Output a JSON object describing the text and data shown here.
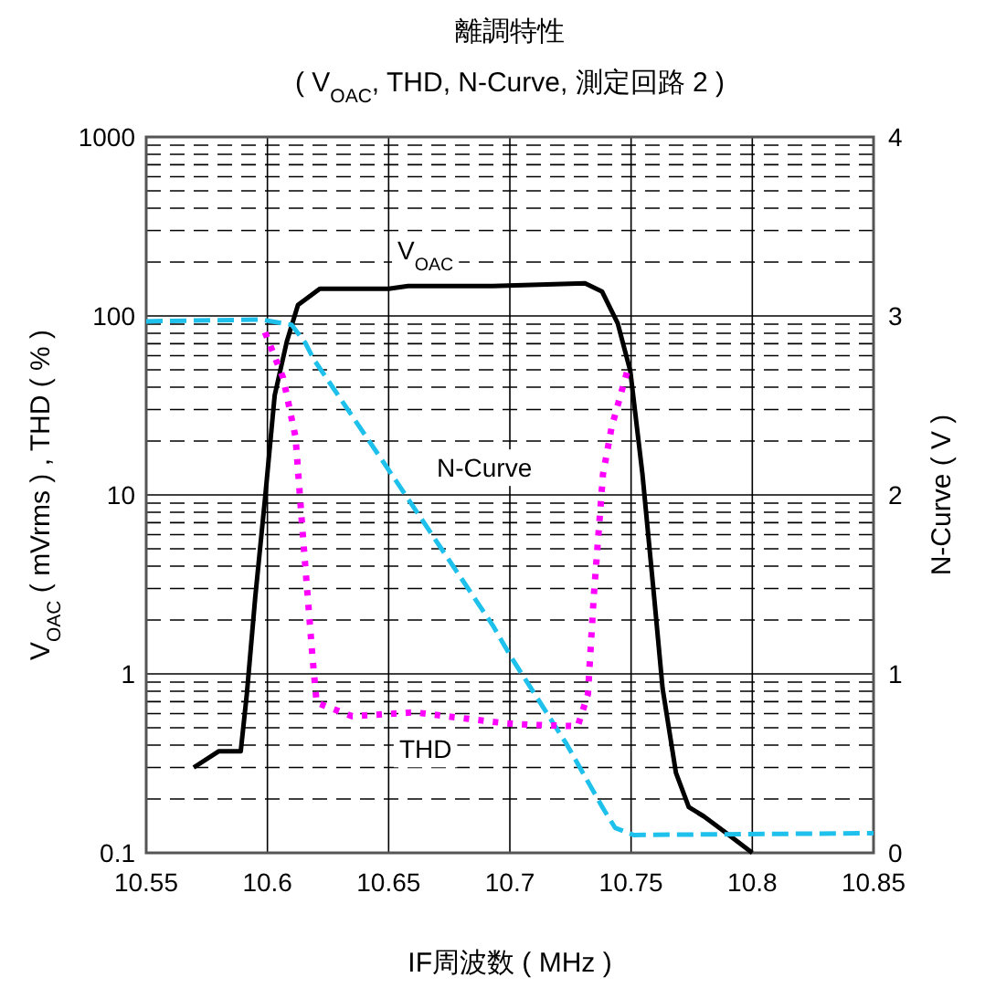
{
  "chart_data": {
    "type": "line",
    "title": "離調特性",
    "subtitle": "( V$_{OAC}$, THD, N-Curve, 測定回路 2 )",
    "xlabel": "IF周波数 ( MHz )",
    "ylabel": "V$_{OAC}$ ( mVrms ) , THD ( % )",
    "y2label": "N-Curve ( V )",
    "xlim": [
      10.55,
      10.85
    ],
    "xticks": [
      10.55,
      10.6,
      10.65,
      10.7,
      10.75,
      10.8,
      10.85
    ],
    "ylim": [
      0.1,
      1000
    ],
    "yticks": [
      0.1,
      1,
      10,
      100,
      1000
    ],
    "y2lim": [
      0,
      4
    ],
    "y2ticks": [
      0,
      1,
      2,
      3,
      4
    ],
    "log": "y",
    "grid": true,
    "legend": false,
    "marker": "none",
    "series": [
      {
        "name": "V$_{OAC}$",
        "color": "#000000",
        "line_style": "solid",
        "x": [
          10.5696,
          10.58,
          10.589,
          10.5915,
          10.595,
          10.599,
          10.603,
          10.608,
          10.6126,
          10.6216,
          10.65,
          10.658,
          10.693,
          10.731,
          10.738,
          10.7445,
          10.7497,
          10.7547,
          10.7595,
          10.763,
          10.7685,
          10.7738,
          10.78,
          10.789,
          10.8
        ],
        "values": [
          0.3,
          0.37,
          0.37,
          0.77,
          2.7,
          9.5,
          36,
          72,
          115,
          142,
          142,
          147,
          147,
          152,
          137,
          91,
          49,
          13,
          2.7,
          0.83,
          0.28,
          0.18,
          0.16,
          0.13,
          0.1
        ]
      },
      {
        "name": "N-Curve",
        "color": "#1ec0ec",
        "line_style": "dashed",
        "axis": "y2",
        "x": [
          10.55,
          10.5975,
          10.61,
          10.6156,
          10.619,
          10.65,
          10.693,
          10.7007,
          10.7233,
          10.7384,
          10.7434,
          10.751,
          10.85
        ],
        "values": [
          2.97,
          2.98,
          2.95,
          2.85,
          2.76,
          2.14,
          1.27,
          1.09,
          0.61,
          0.25,
          0.14,
          0.1,
          0.11
        ]
      },
      {
        "name": "THD",
        "color": "#ff00ff",
        "line_style": "dotted",
        "x": [
          10.599,
          10.6065,
          10.6116,
          10.615,
          10.6186,
          10.6203,
          10.635,
          10.6605,
          10.698,
          10.708,
          10.728,
          10.7322,
          10.7346,
          10.7384,
          10.742,
          10.7484
        ],
        "values": [
          81,
          45,
          21,
          5.1,
          1.24,
          0.69,
          0.58,
          0.61,
          0.53,
          0.52,
          0.51,
          0.77,
          2.7,
          13,
          24,
          49
        ]
      }
    ]
  }
}
